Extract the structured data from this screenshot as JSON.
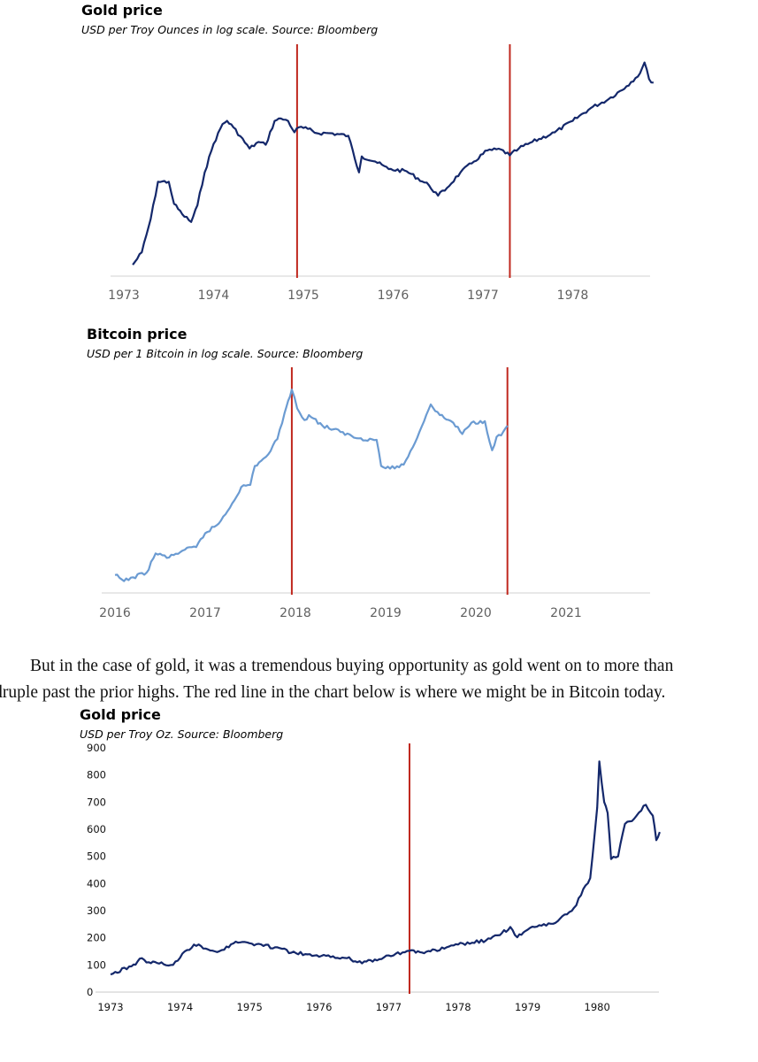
{
  "chart_data": [
    {
      "type": "line",
      "title": "Gold price",
      "subtitle": "USD per Troy Ounces in log scale. Source: Bloomberg",
      "y_scale": "log",
      "x_ticks": [
        "1973",
        "1974",
        "1975",
        "1976",
        "1977",
        "1978"
      ],
      "x_range": [
        1973.0,
        1978.9
      ],
      "y_range": [
        60,
        300
      ],
      "grid": false,
      "vertical_markers": [
        1974.93,
        1977.3
      ],
      "series": [
        {
          "color": "#14286b",
          "x": [
            1973.1,
            1973.2,
            1973.3,
            1973.38,
            1973.5,
            1973.56,
            1973.65,
            1973.75,
            1973.82,
            1973.9,
            1974.0,
            1974.1,
            1974.15,
            1974.22,
            1974.4,
            1974.5,
            1974.58,
            1974.68,
            1974.75,
            1974.83,
            1974.9,
            1974.95,
            1975.05,
            1975.15,
            1975.3,
            1975.5,
            1975.62,
            1975.65,
            1975.8,
            1975.95,
            1976.15,
            1976.4,
            1976.5,
            1976.6,
            1976.75,
            1976.9,
            1977.05,
            1977.2,
            1977.3,
            1977.4,
            1977.55,
            1977.8,
            1978.0,
            1978.2,
            1978.4,
            1978.6,
            1978.75,
            1978.8,
            1978.85,
            1978.9
          ],
          "y": [
            65,
            71,
            90,
            117,
            117,
            100,
            93,
            88,
            99,
            125,
            153,
            176,
            180,
            172,
            148,
            155,
            152,
            180,
            183,
            180,
            166,
            172,
            170,
            165,
            165,
            162,
            125,
            140,
            135,
            128,
            126,
            114,
            106,
            112,
            125,
            135,
            146,
            147,
            141,
            148,
            155,
            166,
            180,
            197,
            210,
            230,
            252,
            272,
            242,
            236
          ]
        }
      ]
    },
    {
      "type": "line",
      "title": "Bitcoin price",
      "subtitle": "USD per 1 Bitcoin in log scale. Source: Bloomberg",
      "y_scale": "log",
      "x_ticks": [
        "2016",
        "2017",
        "2018",
        "2019",
        "2020",
        "2021"
      ],
      "x_range": [
        2016.0,
        2021.9
      ],
      "y_range": [
        300,
        25000
      ],
      "grid": false,
      "vertical_markers": [
        2017.96,
        2020.35
      ],
      "series": [
        {
          "color": "#6b9bd2",
          "x": [
            2016.0,
            2016.1,
            2016.2,
            2016.35,
            2016.45,
            2016.6,
            2016.75,
            2016.9,
            2017.0,
            2017.15,
            2017.3,
            2017.4,
            2017.5,
            2017.55,
            2017.62,
            2017.7,
            2017.8,
            2017.88,
            2017.92,
            2017.96,
            2018.02,
            2018.1,
            2018.15,
            2018.3,
            2018.5,
            2018.7,
            2018.9,
            2018.95,
            2019.05,
            2019.2,
            2019.3,
            2019.45,
            2019.5,
            2019.6,
            2019.75,
            2019.85,
            2019.95,
            2020.1,
            2020.18,
            2020.23,
            2020.28,
            2020.35
          ],
          "y": [
            430,
            380,
            410,
            450,
            660,
            610,
            700,
            750,
            990,
            1200,
            1800,
            2500,
            2600,
            3800,
            4200,
            4800,
            6500,
            11000,
            14000,
            17500,
            12000,
            9500,
            10500,
            8500,
            7500,
            6600,
            6400,
            3800,
            3600,
            3900,
            5500,
            10500,
            13000,
            10500,
            9000,
            7200,
            9000,
            9300,
            5200,
            6800,
            7000,
            8500
          ]
        }
      ]
    },
    {
      "type": "line",
      "title": "Gold price",
      "subtitle": "USD per Troy Oz. Source: Bloomberg",
      "y_scale": "linear",
      "x_ticks": [
        "1973",
        "1974",
        "1975",
        "1976",
        "1977",
        "1978",
        "1979",
        "1980"
      ],
      "y_ticks": [
        0,
        100,
        200,
        300,
        400,
        500,
        600,
        700,
        800,
        900
      ],
      "x_range": [
        1973.0,
        1980.9
      ],
      "y_range": [
        0,
        900
      ],
      "grid": false,
      "vertical_markers": [
        1977.3
      ],
      "series": [
        {
          "color": "#14286b",
          "x": [
            1973.0,
            1973.3,
            1973.45,
            1973.55,
            1973.7,
            1973.9,
            1974.1,
            1974.2,
            1974.3,
            1974.5,
            1974.6,
            1974.7,
            1974.8,
            1974.9,
            1975.0,
            1975.2,
            1975.4,
            1975.6,
            1975.8,
            1976.0,
            1976.2,
            1976.4,
            1976.55,
            1976.65,
            1976.8,
            1977.0,
            1977.2,
            1977.3,
            1977.45,
            1977.6,
            1977.8,
            1978.0,
            1978.2,
            1978.4,
            1978.6,
            1978.75,
            1978.85,
            1979.0,
            1979.2,
            1979.4,
            1979.5,
            1979.6,
            1979.7,
            1979.8,
            1979.9,
            1980.0,
            1980.03,
            1980.1,
            1980.15,
            1980.2,
            1980.3,
            1980.4,
            1980.5,
            1980.7,
            1980.8,
            1980.85,
            1980.9
          ],
          "y": [
            65,
            95,
            125,
            110,
            105,
            100,
            155,
            175,
            170,
            150,
            155,
            165,
            186,
            185,
            180,
            170,
            165,
            145,
            140,
            130,
            132,
            125,
            110,
            113,
            120,
            135,
            146,
            152,
            147,
            150,
            160,
            175,
            182,
            190,
            210,
            240,
            202,
            230,
            245,
            255,
            280,
            295,
            320,
            380,
            420,
            680,
            850,
            700,
            660,
            490,
            500,
            620,
            630,
            690,
            650,
            560,
            590
          ]
        }
      ]
    }
  ],
  "prose": {
    "line1": "But in the case of gold, it was a tremendous buying opportunity as gold went on to more than",
    "line2": "quadruple past the prior highs. The red line in the chart below is where we might be in Bitcoin today."
  }
}
